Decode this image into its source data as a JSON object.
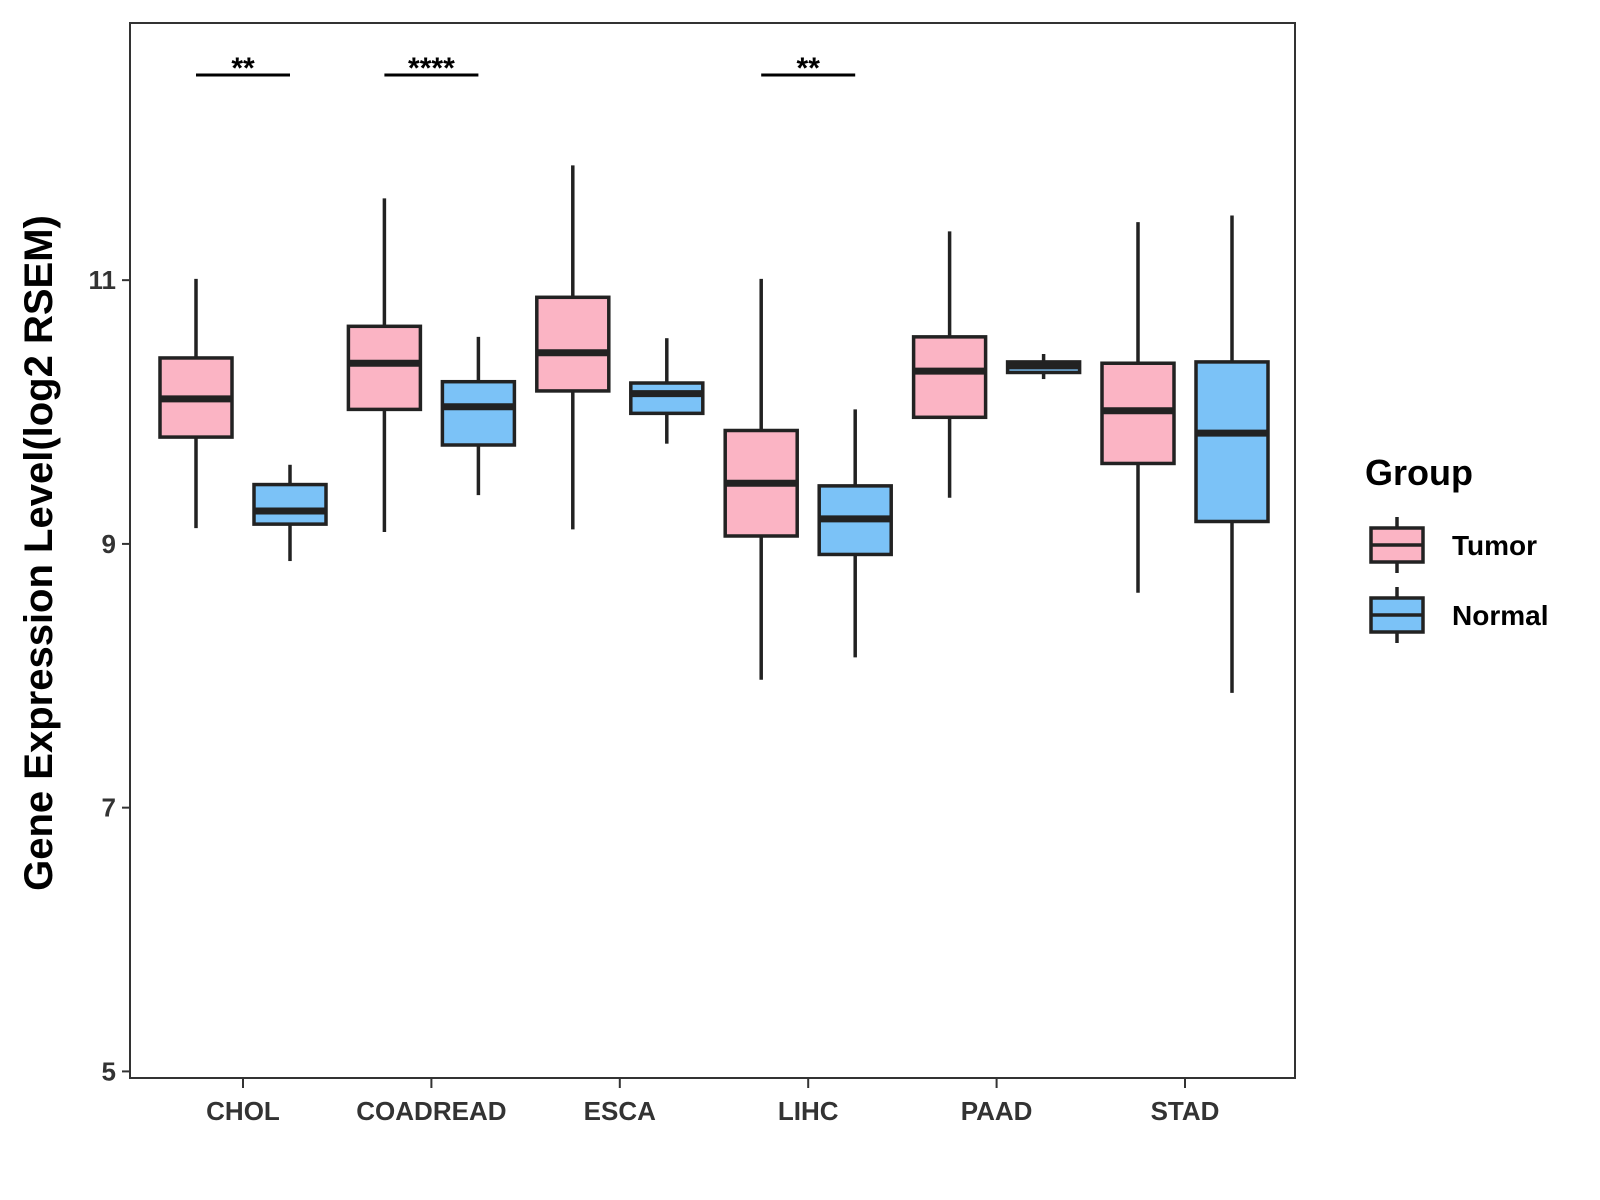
{
  "chart_data": {
    "type": "boxplot",
    "title": "",
    "xlabel": "",
    "ylabel": "Gene Expression Level(log2 RSEM)",
    "ylim": [
      4.95,
      12.95
    ],
    "yticks": [
      5,
      7,
      9,
      11
    ],
    "ytick_labels": [
      "5",
      "7",
      "9",
      "11"
    ],
    "grid": false,
    "categories": [
      "CHOL",
      "COADREAD",
      "ESCA",
      "LIHC",
      "PAAD",
      "STAD"
    ],
    "legend": {
      "title": "Group",
      "position": "right",
      "entries": [
        {
          "name": "Tumor",
          "color": "#FBB4C4"
        },
        {
          "name": "Normal",
          "color": "#7BC2F7"
        }
      ]
    },
    "series": [
      {
        "name": "Tumor",
        "color": "#FBB4C4",
        "boxes": [
          {
            "category": "CHOL",
            "min": 9.12,
            "q1": 9.81,
            "median": 10.1,
            "q3": 10.41,
            "max": 11.01
          },
          {
            "category": "COADREAD",
            "min": 9.09,
            "q1": 10.02,
            "median": 10.37,
            "q3": 10.65,
            "max": 11.62
          },
          {
            "category": "ESCA",
            "min": 9.11,
            "q1": 10.16,
            "median": 10.45,
            "q3": 10.87,
            "max": 11.87
          },
          {
            "category": "LIHC",
            "min": 7.97,
            "q1": 9.06,
            "median": 9.46,
            "q3": 9.86,
            "max": 11.01
          },
          {
            "category": "PAAD",
            "min": 9.35,
            "q1": 9.96,
            "median": 10.31,
            "q3": 10.57,
            "max": 11.37
          },
          {
            "category": "STAD",
            "min": 8.63,
            "q1": 9.61,
            "median": 10.01,
            "q3": 10.37,
            "max": 11.44
          }
        ]
      },
      {
        "name": "Normal",
        "color": "#7BC2F7",
        "boxes": [
          {
            "category": "CHOL",
            "min": 8.87,
            "q1": 9.15,
            "median": 9.25,
            "q3": 9.45,
            "max": 9.6
          },
          {
            "category": "COADREAD",
            "min": 9.37,
            "q1": 9.75,
            "median": 10.04,
            "q3": 10.23,
            "max": 10.57
          },
          {
            "category": "ESCA",
            "min": 9.76,
            "q1": 9.99,
            "median": 10.14,
            "q3": 10.22,
            "max": 10.56
          },
          {
            "category": "LIHC",
            "min": 8.14,
            "q1": 8.92,
            "median": 9.19,
            "q3": 9.44,
            "max": 10.02
          },
          {
            "category": "PAAD",
            "min": 10.25,
            "q1": 10.3,
            "median": 10.35,
            "q3": 10.38,
            "max": 10.44
          },
          {
            "category": "STAD",
            "min": 7.87,
            "q1": 9.17,
            "median": 9.84,
            "q3": 10.38,
            "max": 11.49
          }
        ]
      }
    ],
    "annotations": [
      {
        "category": "CHOL",
        "text": "**"
      },
      {
        "category": "COADREAD",
        "text": "****"
      },
      {
        "category": "LIHC",
        "text": "**"
      }
    ]
  }
}
